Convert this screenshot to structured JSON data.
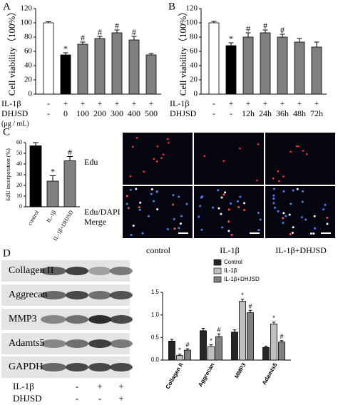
{
  "panels": [
    "A",
    "B",
    "C",
    "D"
  ],
  "chart_data": [
    {
      "type": "bar",
      "ylabel": "Cell viability（100%）",
      "categories_label": "DHJSD",
      "categories": [
        "-",
        "0",
        "100",
        "200",
        "300",
        "400",
        "500"
      ],
      "treatment_rows": [
        {
          "name": "IL-1β",
          "labels": [
            "-",
            "+",
            "+",
            "+",
            "+",
            "+",
            "+"
          ]
        }
      ],
      "unit_note": "(μg / mL)",
      "values": [
        100,
        55,
        70,
        78,
        86,
        76,
        55
      ],
      "errors": [
        1.5,
        3,
        3,
        3,
        4,
        5,
        2
      ],
      "value_annotations": [
        null,
        "*",
        "#",
        "#",
        "#",
        "#",
        null
      ],
      "colors": [
        "#ffffff",
        "#000000",
        "#7f7f7f",
        "#7f7f7f",
        "#7f7f7f",
        "#7f7f7f",
        "#7f7f7f"
      ],
      "ylim": [
        0,
        120
      ],
      "yticks": [
        0,
        20,
        40,
        60,
        80,
        100,
        120
      ]
    },
    {
      "type": "bar",
      "ylabel": "Cell viability（100%）",
      "categories_label": "DHJSD",
      "categories": [
        "-",
        "-",
        "12h",
        "24h",
        "36h",
        "48h",
        "72h"
      ],
      "treatment_rows": [
        {
          "name": "IL-1β",
          "labels": [
            "-",
            "+",
            "+",
            "+",
            "+",
            "+",
            "+"
          ]
        }
      ],
      "values": [
        100,
        68,
        80,
        86,
        80,
        73,
        66
      ],
      "errors": [
        2,
        4,
        6,
        4,
        4,
        5,
        7
      ],
      "value_annotations": [
        null,
        "*",
        "#",
        "#",
        "#",
        null,
        null
      ],
      "colors": [
        "#ffffff",
        "#000000",
        "#7f7f7f",
        "#7f7f7f",
        "#7f7f7f",
        "#7f7f7f",
        "#7f7f7f"
      ],
      "ylim": [
        0,
        120
      ],
      "yticks": [
        0,
        20,
        40,
        60,
        80,
        100,
        120
      ]
    },
    {
      "type": "bar",
      "ylabel": "EdU incorporation (%)",
      "categories": [
        "control",
        "IL-1β",
        "IL-1β+DHJSD"
      ],
      "values": [
        57,
        24,
        43
      ],
      "errors": [
        3,
        5,
        4
      ],
      "value_annotations": [
        null,
        "*",
        "#"
      ],
      "colors": [
        "#000000",
        "#808080",
        "#808080"
      ],
      "ylim": [
        0,
        60
      ],
      "yticks": [
        0,
        10,
        20,
        30,
        40,
        50,
        60
      ]
    },
    {
      "type": "bar",
      "categories": [
        "Collagen II",
        "Aggrecan",
        "MMP3",
        "Adamts5"
      ],
      "series": [
        {
          "name": "Control",
          "color": "#262626",
          "values": [
            0.42,
            0.65,
            0.62,
            0.28
          ],
          "errors": [
            0.04,
            0.05,
            0.05,
            0.03
          ]
        },
        {
          "name": "IL-1β",
          "color": "#c0c0c0",
          "values": [
            0.1,
            0.3,
            1.3,
            0.8
          ],
          "errors": [
            0.03,
            0.04,
            0.05,
            0.04
          ],
          "value_annotations": [
            "*",
            "*",
            "*",
            "*"
          ]
        },
        {
          "name": "IL-1β+DHJSD",
          "color": "#808080",
          "values": [
            0.22,
            0.52,
            1.05,
            0.4
          ],
          "errors": [
            0.03,
            0.06,
            0.05,
            0.03
          ],
          "value_annotations": [
            "#",
            "#",
            "#",
            "#"
          ]
        }
      ],
      "ylim": [
        0,
        1.5
      ],
      "yticks": [
        {
          "value": 0,
          "label": "0.0"
        },
        {
          "value": 0.5,
          "label": "0.5"
        },
        {
          "value": 1,
          "label": "1.0"
        },
        {
          "value": 1.5,
          "label": "1.5"
        }
      ],
      "legend": "top"
    }
  ],
  "images": {
    "row_label": "Edu",
    "merge_label": [
      "Edu/DAPI",
      "Merge"
    ],
    "column_labels": [
      "control",
      "IL-1β",
      "IL-1β+DHJSD"
    ]
  },
  "blot": {
    "bands": [
      "Collagen II",
      "Aggrecan",
      "MMP3",
      "Adamts5",
      "GAPDH"
    ],
    "rows": [
      {
        "name": "IL-1β",
        "labels": [
          "-",
          "+",
          "+"
        ]
      },
      {
        "name": "DHJSD",
        "labels": [
          "-",
          "-",
          "+"
        ]
      }
    ]
  }
}
